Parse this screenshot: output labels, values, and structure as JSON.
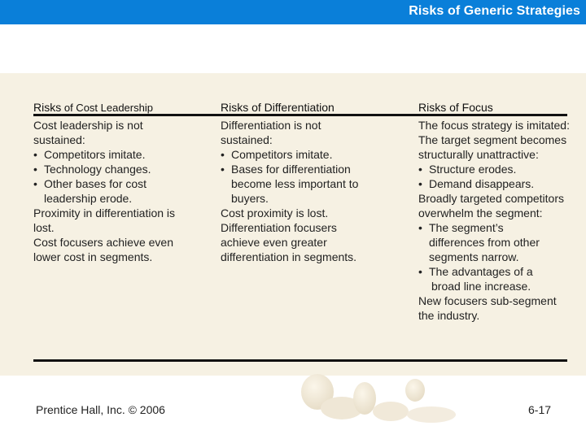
{
  "header": {
    "title": "Risks of Generic Strategies"
  },
  "columns": [
    {
      "heading_a": "Risks",
      "heading_b": " of Cost Leadership",
      "lines": [
        "Cost leadership is not",
        "sustained:",
        "Competitors imitate.",
        "Technology changes.",
        "Other bases for cost",
        "leadership erode.",
        "Proximity in differentiation is",
        "lost.",
        "Cost focusers achieve even",
        "lower cost in segments."
      ]
    },
    {
      "heading": "Risks of Differentiation",
      "lines": [
        "Differentiation is not",
        "sustained:",
        "Competitors imitate.",
        "Bases for differentiation",
        "become less important to",
        "buyers.",
        "Cost proximity is lost.",
        "Differentiation focusers",
        "achieve even greater",
        "differentiation in segments."
      ]
    },
    {
      "heading": "Risks of Focus",
      "lines": [
        "The focus strategy is imitated:",
        "The target segment becomes",
        "structurally unattractive:",
        "Structure erodes.",
        "Demand disappears.",
        "Broadly targeted competitors",
        "overwhelm the segment:",
        "The segment’s",
        "differences from other",
        "segments narrow.",
        "The advantages of a",
        "broad line increase.",
        "New focusers sub-segment",
        "the industry."
      ]
    }
  ],
  "footer": {
    "publisher": "Prentice Hall, Inc. ©  2006",
    "page": "6-17"
  }
}
